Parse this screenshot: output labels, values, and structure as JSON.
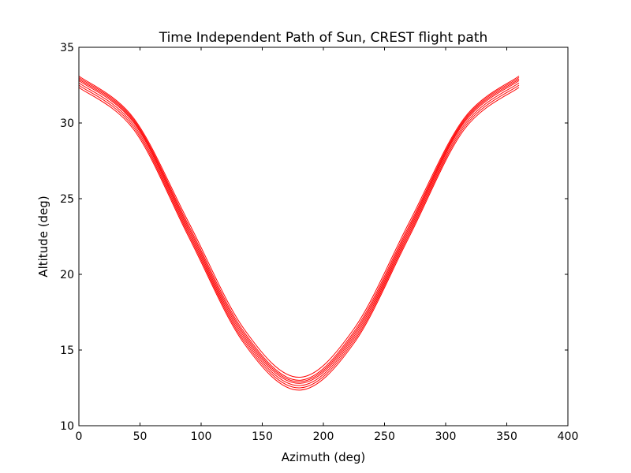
{
  "chart_data": {
    "type": "line",
    "title": "Time Independent Path of Sun, CREST flight path",
    "xlabel": "Azimuth (deg)",
    "ylabel": "Altitude (deg)",
    "xlim": [
      0,
      400
    ],
    "ylim": [
      10,
      35
    ],
    "xticks": [
      "0",
      "50",
      "100",
      "150",
      "200",
      "250",
      "300",
      "350",
      "400"
    ],
    "yticks": [
      "10",
      "15",
      "20",
      "25",
      "30",
      "35"
    ],
    "grid": false,
    "legend": "none",
    "line_color": "#ff0000",
    "series": [
      {
        "x": [
          0,
          45,
          90,
          135,
          180,
          225,
          270,
          315,
          360
        ],
        "y": [
          33.1,
          30.3,
          23.4,
          16.4,
          13.2,
          16.4,
          23.4,
          30.3,
          33.1
        ]
      },
      {
        "x": [
          0,
          45,
          90,
          135,
          180,
          225,
          270,
          315,
          360
        ],
        "y": [
          33.0,
          30.2,
          23.2,
          16.2,
          13.0,
          16.2,
          23.2,
          30.2,
          33.0
        ]
      },
      {
        "x": [
          0,
          45,
          90,
          135,
          180,
          225,
          270,
          315,
          360
        ],
        "y": [
          32.9,
          30.1,
          23.05,
          16.05,
          12.9,
          16.05,
          23.05,
          30.1,
          32.9
        ]
      },
      {
        "x": [
          0,
          45,
          90,
          135,
          180,
          225,
          270,
          315,
          360
        ],
        "y": [
          32.8,
          30.0,
          22.9,
          15.9,
          12.8,
          15.9,
          22.9,
          30.0,
          32.8
        ]
      },
      {
        "x": [
          0,
          45,
          90,
          135,
          180,
          225,
          270,
          315,
          360
        ],
        "y": [
          32.65,
          29.85,
          22.75,
          15.75,
          12.65,
          15.75,
          22.75,
          29.85,
          32.65
        ]
      },
      {
        "x": [
          0,
          45,
          90,
          135,
          180,
          225,
          270,
          315,
          360
        ],
        "y": [
          32.5,
          29.7,
          22.6,
          15.6,
          12.5,
          15.6,
          22.6,
          29.7,
          32.5
        ]
      },
      {
        "x": [
          0,
          45,
          90,
          135,
          180,
          225,
          270,
          315,
          360
        ],
        "y": [
          32.35,
          29.55,
          22.45,
          15.45,
          12.35,
          15.45,
          22.45,
          29.55,
          32.35
        ]
      }
    ]
  }
}
